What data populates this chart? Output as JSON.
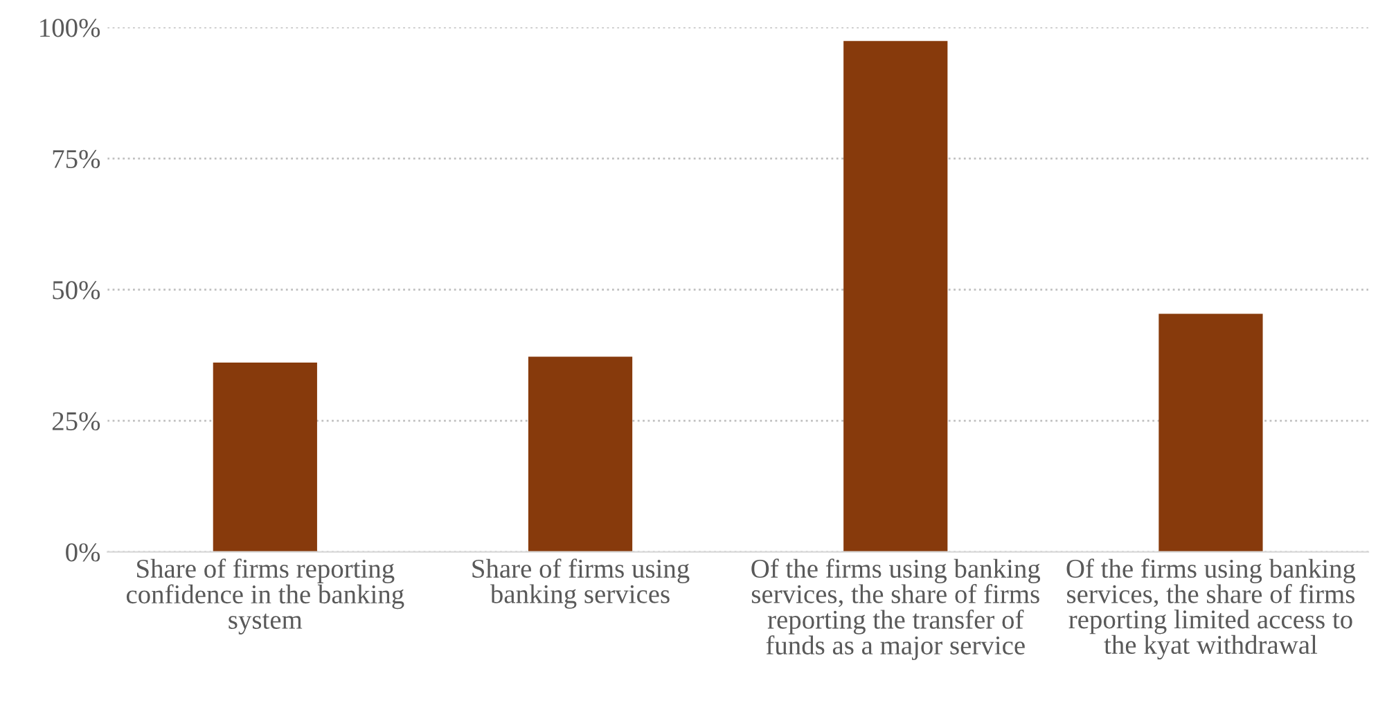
{
  "chart_data": {
    "type": "bar",
    "categories": [
      "Share of firms reporting confidence in the banking system",
      "Share of firms using banking services",
      "Of the firms using banking services, the share of firms reporting the transfer of funds as a major service",
      "Of the firms using banking services, the share of firms reporting limited access to the kyat withdrawal"
    ],
    "values": [
      36.1,
      37.2,
      97.4,
      45.4
    ],
    "color": "#873a0c",
    "ylim": [
      0,
      100
    ],
    "yticks": [
      {
        "value": 0,
        "label": "0%"
      },
      {
        "value": 25,
        "label": "25%"
      },
      {
        "value": 50,
        "label": "50%"
      },
      {
        "value": 75,
        "label": "75%"
      },
      {
        "value": 100,
        "label": "100%"
      }
    ],
    "grid": "y"
  }
}
